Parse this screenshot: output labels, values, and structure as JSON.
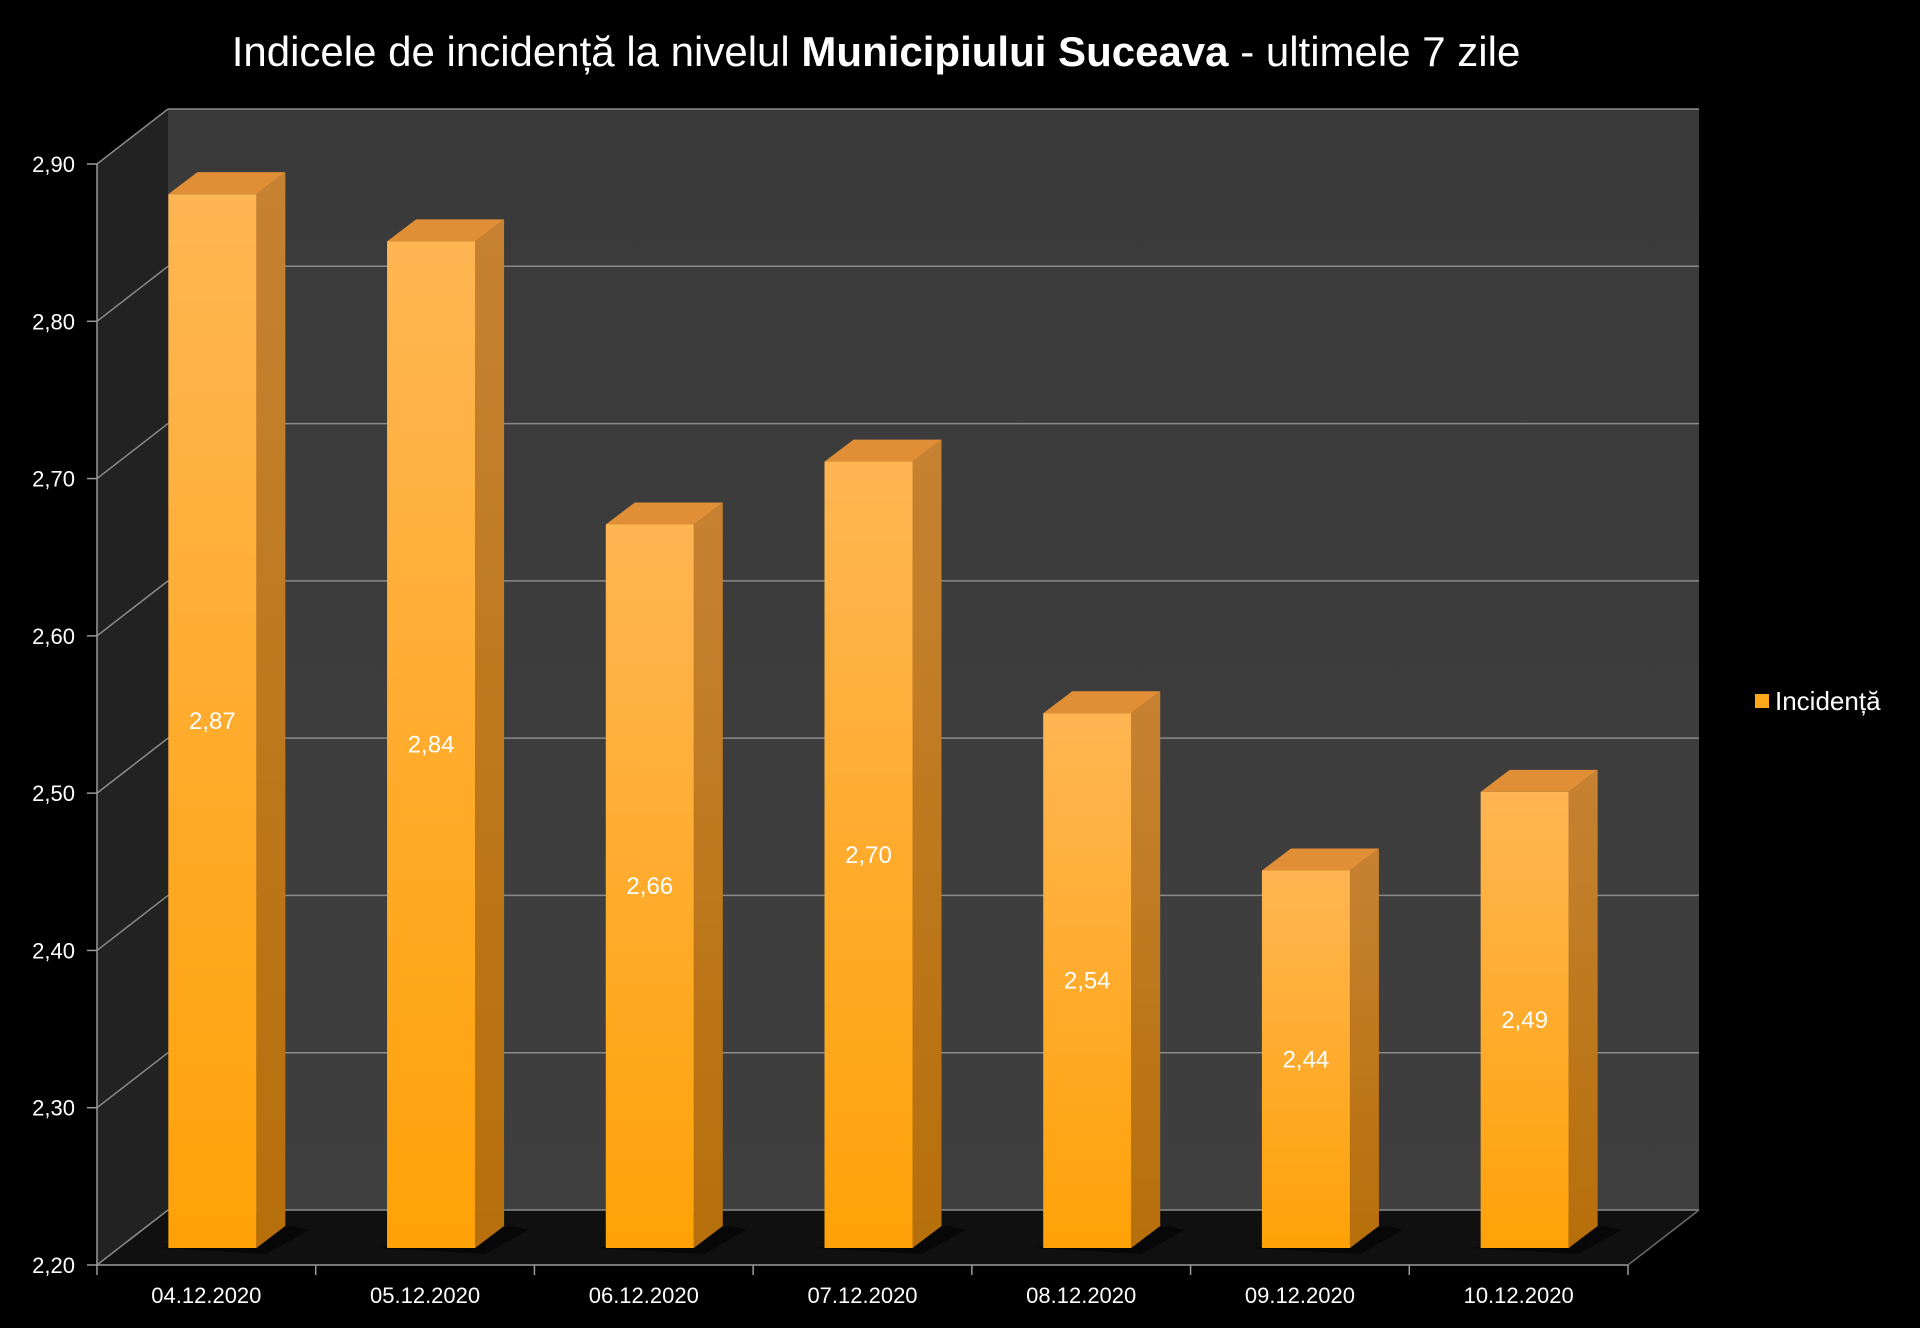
{
  "chart_data": {
    "type": "bar",
    "title_parts": {
      "prefix": "Indicele de incidență la nivelul ",
      "bold": "Municipiului Suceava",
      "suffix": " - ultimele 7 zile"
    },
    "categories": [
      "04.12.2020",
      "05.12.2020",
      "06.12.2020",
      "07.12.2020",
      "08.12.2020",
      "09.12.2020",
      "10.12.2020"
    ],
    "series": [
      {
        "name": "Incidență",
        "values": [
          2.87,
          2.84,
          2.66,
          2.7,
          2.54,
          2.44,
          2.49
        ],
        "labels": [
          "2,87",
          "2,84",
          "2,66",
          "2,70",
          "2,54",
          "2,44",
          "2,49"
        ]
      }
    ],
    "ylim": [
      2.2,
      2.9
    ],
    "yticks": [
      2.2,
      2.3,
      2.4,
      2.5,
      2.6,
      2.7,
      2.8,
      2.9
    ],
    "ytick_labels": [
      "2,20",
      "2,30",
      "2,40",
      "2,50",
      "2,60",
      "2,70",
      "2,80",
      "2,90"
    ],
    "grid": true,
    "legend_position": "right",
    "colors": {
      "bar": "#ffa81c",
      "wall": "#3d3d3d",
      "side_wall": "#222222",
      "background": "#000000",
      "text": "#ffffff"
    }
  }
}
